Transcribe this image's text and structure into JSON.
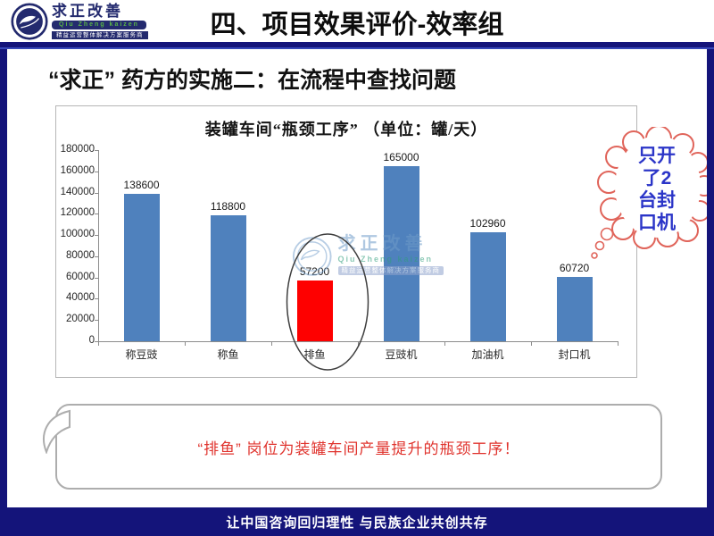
{
  "header": {
    "logo": {
      "brand": "求正改善",
      "brand_en": "Qiu Zheng kaizen",
      "tagline": "精益运营整体解决方案服务商"
    },
    "title": "四、项目效果评价-效率组"
  },
  "slide_title": "“求正” 药方的实施二：在流程中查找问题",
  "chart_data": {
    "type": "bar",
    "title": "装罐车间“瓶颈工序” （单位：罐/天）",
    "categories": [
      "称豆豉",
      "称鱼",
      "排鱼",
      "豆豉机",
      "加油机",
      "封口机"
    ],
    "values": [
      138600,
      118800,
      57200,
      165000,
      102960,
      60720
    ],
    "xlabel": "",
    "ylabel": "",
    "ylim": [
      0,
      180000
    ],
    "ytick_step": 20000,
    "grid": false,
    "legend": false,
    "bar_color": "#4f81bd",
    "highlight_index": 2,
    "highlight_color": "#fe0000",
    "annotation": "black ellipse circling the red 排鱼 bar"
  },
  "watermark": {
    "brand": "求正改善",
    "brand_en": "Qiu Zheng kaizen",
    "tagline": "精益运营整体解决方案服务商"
  },
  "cloud_callout": {
    "lines": [
      "只开",
      "了2",
      "台封",
      "口机"
    ]
  },
  "bottom_callout": {
    "text": "“排鱼” 岗位为装罐车间产量提升的瓶颈工序！"
  },
  "footer": {
    "text": "让中国咨询回归理性 与民族企业共创共存"
  },
  "colors": {
    "frame_navy": "#14147a",
    "bar_blue": "#4f81bd",
    "highlight_red": "#fe0000",
    "cloud_outline": "#e0645a",
    "cloud_text_blue": "#2b35c8",
    "callout_text_red": "#e0342e"
  }
}
